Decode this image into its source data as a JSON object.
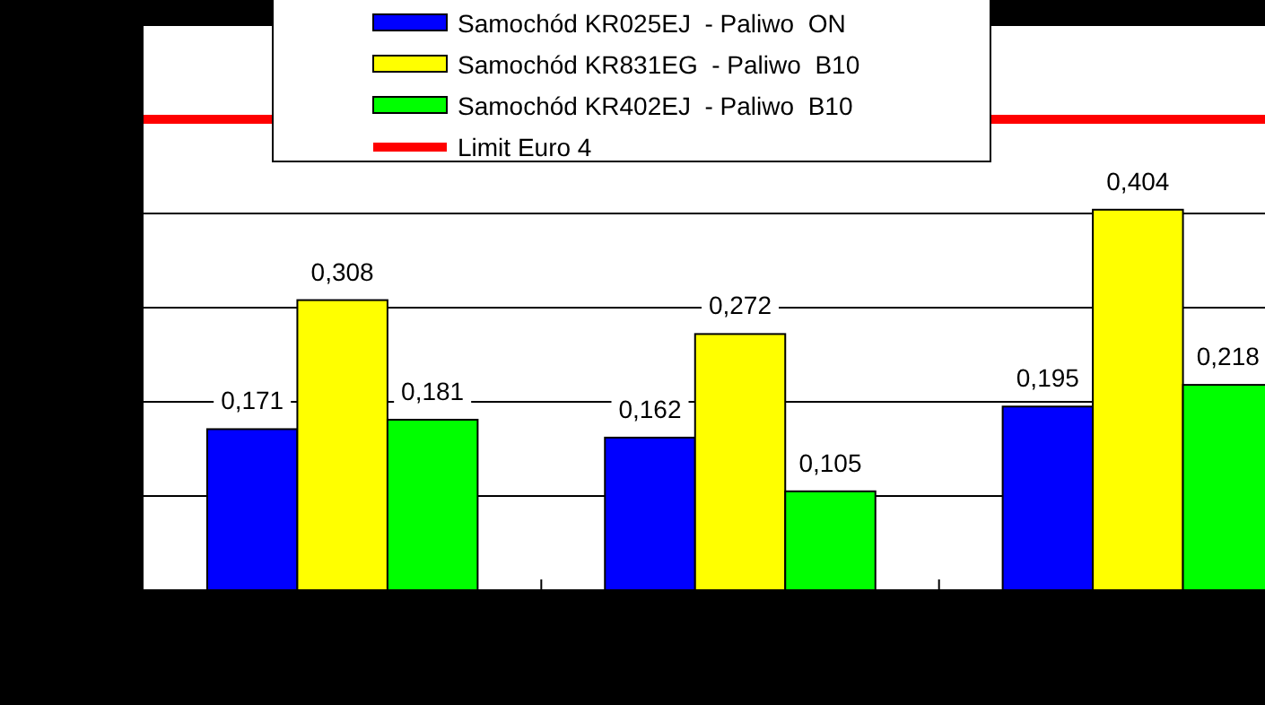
{
  "chart_data": {
    "type": "bar",
    "categories": [
      null,
      null,
      null
    ],
    "series": [
      {
        "name": "Samochód KR025EJ  - Paliwo  ON",
        "color": "#0000ff",
        "values": [
          0.171,
          0.162,
          0.195
        ],
        "value_labels": [
          "0,171",
          "0,162",
          "0,195"
        ]
      },
      {
        "name": "Samochód KR831EG  - Paliwo  B10",
        "color": "#ffff00",
        "values": [
          0.308,
          0.272,
          0.404
        ],
        "value_labels": [
          "0,308",
          "0,272",
          "0,404"
        ]
      },
      {
        "name": "Samochód KR402EJ  - Paliwo  B10",
        "color": "#00ff00",
        "values": [
          0.181,
          0.105,
          0.218
        ],
        "value_labels": [
          "0,181",
          "0,105",
          "0,218"
        ]
      }
    ],
    "ylim": [
      0,
      0.6
    ],
    "yticks": [
      {
        "value": 0,
        "label": null
      },
      {
        "value": 0.1,
        "label": null
      },
      {
        "value": 0.2,
        "label": null
      },
      {
        "value": 0.3,
        "label": null
      },
      {
        "value": 0.4,
        "label": null
      },
      {
        "value": 0.5,
        "label": null
      },
      {
        "value": 0.6,
        "label": null
      }
    ],
    "grid": "y",
    "legend": "top",
    "ref_lines": [
      {
        "axis": "y",
        "value": 0.5,
        "label": "Limit Euro 4",
        "color": "#ff0000"
      }
    ]
  }
}
